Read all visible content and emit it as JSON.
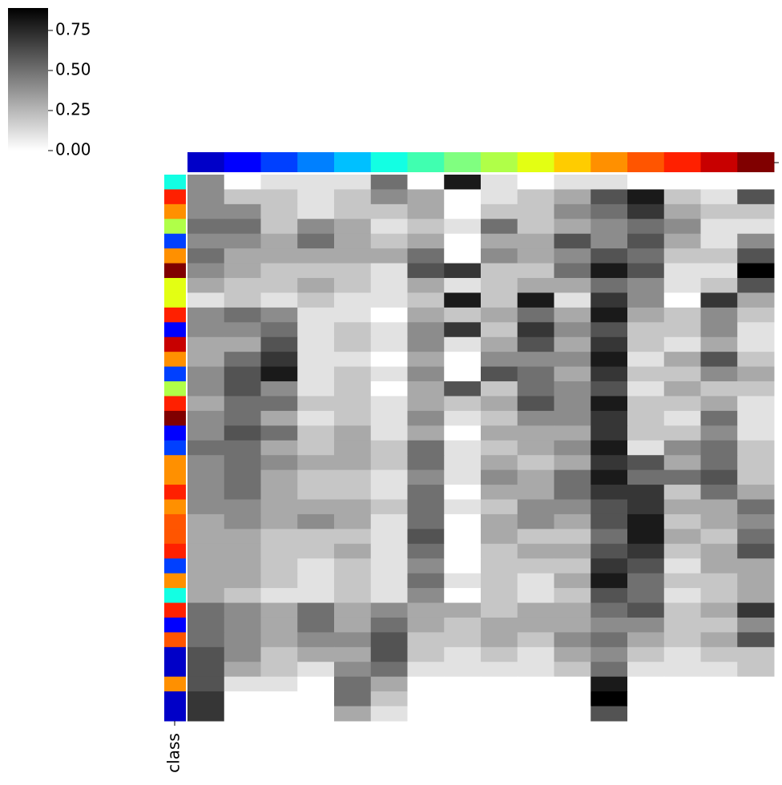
{
  "chart_data": {
    "type": "heatmap",
    "cmap": "Greys",
    "zlim": [
      0,
      0.89
    ],
    "colorbar_ticks": [
      {
        "value": 0,
        "label": "0.00"
      },
      {
        "value": 0.25,
        "label": "0.25"
      },
      {
        "value": 0.5,
        "label": "0.50"
      },
      {
        "value": 0.75,
        "label": "0.75"
      }
    ],
    "ylabel": "class",
    "col_colors": [
      "#0000c8",
      "#0000ff",
      "#0040ff",
      "#0080ff",
      "#00c0ff",
      "#13ffe3",
      "#40ffb0",
      "#80ff80",
      "#b0ff48",
      "#e3ff13",
      "#ffcc00",
      "#ff9000",
      "#ff5500",
      "#ff2000",
      "#c80000",
      "#800000"
    ],
    "row_colors": [
      "#13ffe3",
      "#ff2000",
      "#ff9000",
      "#b0ff48",
      "#0040ff",
      "#ff9000",
      "#800000",
      "#e3ff13",
      "#e3ff13",
      "#ff2000",
      "#0000ff",
      "#c80000",
      "#ff9000",
      "#0040ff",
      "#b0ff48",
      "#ff2000",
      "#800000",
      "#0000ff",
      "#0040ff",
      "#ff9000",
      "#ff9000",
      "#ff2000",
      "#ff9000",
      "#ff5500",
      "#ff5500",
      "#ff2000",
      "#0040ff",
      "#ff9000",
      "#13ffe3",
      "#ff2000",
      "#0000ff",
      "#ff5500",
      "#0000c8",
      "#0000c8",
      "#ff9000",
      "#0000c8",
      "#0000c8"
    ],
    "values": [
      [
        0.4,
        0,
        0.1,
        0.1,
        0.1,
        0.5,
        0,
        0.8,
        0.1,
        0,
        0.1,
        0.1,
        0,
        0,
        0,
        0
      ],
      [
        0.4,
        0.2,
        0.2,
        0.1,
        0.2,
        0.4,
        0.3,
        0,
        0.1,
        0.2,
        0.3,
        0.6,
        0.8,
        0.2,
        0.1,
        0.6
      ],
      [
        0.4,
        0.4,
        0.2,
        0.1,
        0.2,
        0.2,
        0.3,
        0,
        0.2,
        0.2,
        0.4,
        0.5,
        0.7,
        0.3,
        0.2,
        0.2
      ],
      [
        0.5,
        0.5,
        0.2,
        0.4,
        0.3,
        0.1,
        0.2,
        0.1,
        0.5,
        0.2,
        0.3,
        0.4,
        0.5,
        0.4,
        0.1,
        0.1
      ],
      [
        0.4,
        0.4,
        0.3,
        0.5,
        0.3,
        0.2,
        0.3,
        0,
        0.3,
        0.3,
        0.6,
        0.4,
        0.6,
        0.3,
        0.1,
        0.4
      ],
      [
        0.5,
        0.3,
        0.3,
        0.3,
        0.3,
        0.3,
        0.5,
        0,
        0.4,
        0.3,
        0.4,
        0.6,
        0.5,
        0.2,
        0.2,
        0.6
      ],
      [
        0.4,
        0.3,
        0.2,
        0.2,
        0.2,
        0.1,
        0.6,
        0.7,
        0.2,
        0.2,
        0.5,
        0.8,
        0.6,
        0.1,
        0.1,
        0.9
      ],
      [
        0.3,
        0.2,
        0.2,
        0.3,
        0.2,
        0.1,
        0.3,
        0.1,
        0.2,
        0.3,
        0.3,
        0.5,
        0.4,
        0.1,
        0.2,
        0.6
      ],
      [
        0.1,
        0.2,
        0.1,
        0.2,
        0.1,
        0.1,
        0.2,
        0.8,
        0.2,
        0.8,
        0.1,
        0.7,
        0.4,
        0,
        0.7,
        0.3
      ],
      [
        0.4,
        0.5,
        0.4,
        0.1,
        0.1,
        0,
        0.3,
        0.2,
        0.3,
        0.5,
        0.3,
        0.8,
        0.3,
        0.2,
        0.4,
        0.2
      ],
      [
        0.4,
        0.4,
        0.5,
        0.1,
        0.2,
        0.1,
        0.4,
        0.7,
        0.2,
        0.7,
        0.4,
        0.6,
        0.2,
        0.2,
        0.4,
        0.1
      ],
      [
        0.3,
        0.3,
        0.6,
        0.1,
        0.2,
        0.1,
        0.4,
        0.1,
        0.3,
        0.6,
        0.3,
        0.7,
        0.2,
        0.1,
        0.3,
        0.1
      ],
      [
        0.3,
        0.5,
        0.7,
        0.1,
        0.1,
        0,
        0.3,
        0,
        0.4,
        0.4,
        0.4,
        0.8,
        0.1,
        0.3,
        0.6,
        0.2
      ],
      [
        0.4,
        0.6,
        0.8,
        0.1,
        0.2,
        0.1,
        0.4,
        0,
        0.6,
        0.5,
        0.3,
        0.7,
        0.2,
        0.2,
        0.4,
        0.3
      ],
      [
        0.4,
        0.6,
        0.4,
        0.1,
        0.2,
        0,
        0.3,
        0.6,
        0.2,
        0.5,
        0.4,
        0.6,
        0.1,
        0.3,
        0.2,
        0.2
      ],
      [
        0.3,
        0.5,
        0.5,
        0.2,
        0.2,
        0.1,
        0.3,
        0.2,
        0.3,
        0.6,
        0.4,
        0.8,
        0.2,
        0.2,
        0.3,
        0.1
      ],
      [
        0.4,
        0.5,
        0.3,
        0.1,
        0.2,
        0.1,
        0.4,
        0.1,
        0.2,
        0.4,
        0.4,
        0.7,
        0.2,
        0.1,
        0.5,
        0.1
      ],
      [
        0.4,
        0.6,
        0.5,
        0.2,
        0.3,
        0.1,
        0.3,
        0,
        0.3,
        0.3,
        0.3,
        0.7,
        0.2,
        0.2,
        0.4,
        0.1
      ],
      [
        0.5,
        0.5,
        0.3,
        0.2,
        0.3,
        0.2,
        0.5,
        0.1,
        0.2,
        0.3,
        0.4,
        0.8,
        0.1,
        0.4,
        0.5,
        0.2
      ],
      [
        0.4,
        0.5,
        0.4,
        0.3,
        0.3,
        0.2,
        0.5,
        0.1,
        0.3,
        0.2,
        0.3,
        0.7,
        0.6,
        0.3,
        0.5,
        0.2
      ],
      [
        0.4,
        0.5,
        0.3,
        0.2,
        0.2,
        0.1,
        0.4,
        0.1,
        0.4,
        0.3,
        0.5,
        0.8,
        0.5,
        0.5,
        0.6,
        0.2
      ],
      [
        0.4,
        0.5,
        0.3,
        0.2,
        0.2,
        0.1,
        0.5,
        0,
        0.3,
        0.3,
        0.5,
        0.7,
        0.7,
        0.2,
        0.5,
        0.3
      ],
      [
        0.4,
        0.4,
        0.3,
        0.3,
        0.3,
        0.2,
        0.5,
        0.1,
        0.2,
        0.4,
        0.4,
        0.6,
        0.7,
        0.3,
        0.3,
        0.5
      ],
      [
        0.3,
        0.4,
        0.3,
        0.4,
        0.3,
        0.1,
        0.5,
        0,
        0.3,
        0.4,
        0.3,
        0.6,
        0.8,
        0.2,
        0.3,
        0.4
      ],
      [
        0.3,
        0.3,
        0.2,
        0.2,
        0.2,
        0.1,
        0.6,
        0,
        0.3,
        0.2,
        0.2,
        0.5,
        0.8,
        0.3,
        0.2,
        0.5
      ],
      [
        0.3,
        0.3,
        0.2,
        0.2,
        0.3,
        0.1,
        0.5,
        0,
        0.2,
        0.3,
        0.3,
        0.6,
        0.7,
        0.2,
        0.3,
        0.6
      ],
      [
        0.3,
        0.3,
        0.2,
        0.1,
        0.2,
        0.1,
        0.4,
        0,
        0.2,
        0.2,
        0.2,
        0.7,
        0.6,
        0.1,
        0.3,
        0.3
      ],
      [
        0.3,
        0.3,
        0.2,
        0.1,
        0.2,
        0.1,
        0.5,
        0.1,
        0.2,
        0.1,
        0.3,
        0.8,
        0.5,
        0.2,
        0.2,
        0.3
      ],
      [
        0.3,
        0.2,
        0.1,
        0.1,
        0.2,
        0.1,
        0.4,
        0,
        0.2,
        0.1,
        0.2,
        0.6,
        0.5,
        0.1,
        0.2,
        0.3
      ],
      [
        0.5,
        0.4,
        0.3,
        0.5,
        0.3,
        0.4,
        0.3,
        0.3,
        0.2,
        0.3,
        0.3,
        0.5,
        0.6,
        0.2,
        0.3,
        0.7
      ],
      [
        0.5,
        0.4,
        0.3,
        0.5,
        0.3,
        0.5,
        0.3,
        0.2,
        0.3,
        0.3,
        0.3,
        0.4,
        0.4,
        0.2,
        0.2,
        0.4
      ],
      [
        0.5,
        0.4,
        0.3,
        0.4,
        0.4,
        0.6,
        0.2,
        0.2,
        0.3,
        0.2,
        0.4,
        0.5,
        0.3,
        0.2,
        0.3,
        0.6
      ],
      [
        0.6,
        0.4,
        0.2,
        0.3,
        0.3,
        0.6,
        0.2,
        0.1,
        0.2,
        0.1,
        0.3,
        0.4,
        0.2,
        0.1,
        0.2,
        0.2
      ],
      [
        0.6,
        0.3,
        0.2,
        0.1,
        0.4,
        0.5,
        0.1,
        0.1,
        0.1,
        0.1,
        0.2,
        0.5,
        0.1,
        0.1,
        0.1,
        0.2
      ],
      [
        0.6,
        0.1,
        0.1,
        0,
        0.5,
        0.3,
        0,
        0,
        0,
        0,
        0,
        0.8,
        0,
        0,
        0,
        0
      ],
      [
        0.7,
        0,
        0,
        0,
        0.5,
        0.2,
        0,
        0,
        0,
        0,
        0,
        0.9,
        0,
        0,
        0,
        0
      ],
      [
        0.7,
        0,
        0,
        0,
        0.3,
        0.1,
        0,
        0,
        0,
        0,
        0,
        0.6,
        0,
        0,
        0,
        0
      ]
    ]
  }
}
